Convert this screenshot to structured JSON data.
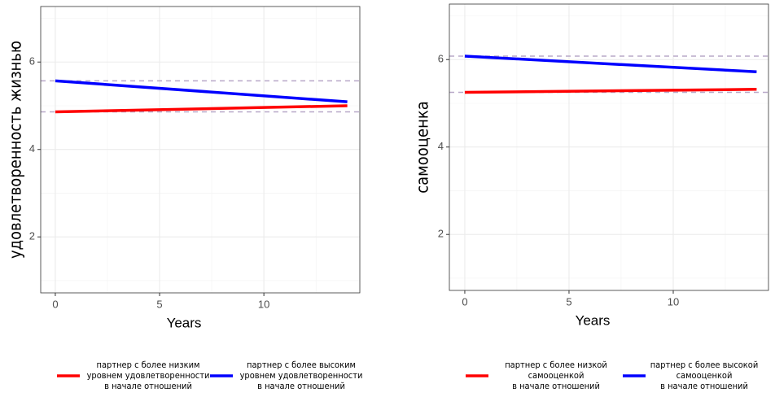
{
  "chart_data": [
    {
      "type": "line",
      "y_label": "удовлетворенность жизнью",
      "x_label": "Years",
      "xlim": [
        -0.7,
        14.6
      ],
      "ylim": [
        0.72,
        7.27
      ],
      "xticks": [
        0,
        5,
        10
      ],
      "yticks": [
        2,
        4,
        6
      ],
      "minor_xticks": [
        2.5,
        7.5,
        12.5
      ],
      "minor_yticks": [
        1,
        3,
        5,
        7
      ],
      "grid": true,
      "x": [
        0,
        14
      ],
      "series": [
        {
          "name": "партнер с более низким\nуровнем удовлетворенности\nв начале отношений",
          "color": "#ff0000",
          "values": [
            4.86,
            5.0
          ]
        },
        {
          "name": "партнер с более высоким\nуровнем удовлетворенности\nв начале отношений",
          "color": "#0000ff",
          "values": [
            5.57,
            5.09
          ]
        }
      ],
      "reference_lines": [
        5.57,
        4.86
      ],
      "reference_color": "#b8a8c8"
    },
    {
      "type": "line",
      "y_label": "самооценка",
      "x_label": "Years",
      "xlim": [
        -0.74,
        14.57
      ],
      "ylim": [
        0.72,
        7.27
      ],
      "xticks": [
        0,
        5,
        10
      ],
      "yticks": [
        2,
        4,
        6
      ],
      "minor_xticks": [
        2.5,
        7.5,
        12.5
      ],
      "minor_yticks": [
        1,
        3,
        5,
        7
      ],
      "grid": true,
      "x": [
        0,
        14
      ],
      "series": [
        {
          "name": "партнер с более низкой\nсамооценкой\nв начале отношений",
          "color": "#ff0000",
          "values": [
            5.25,
            5.32
          ]
        },
        {
          "name": "партнер с более высокой\nсамооценкой\nв начале отношений",
          "color": "#0000ff",
          "values": [
            6.08,
            5.72
          ]
        }
      ],
      "reference_lines": [
        6.08,
        5.25
      ],
      "reference_color": "#b8a8c8"
    }
  ]
}
